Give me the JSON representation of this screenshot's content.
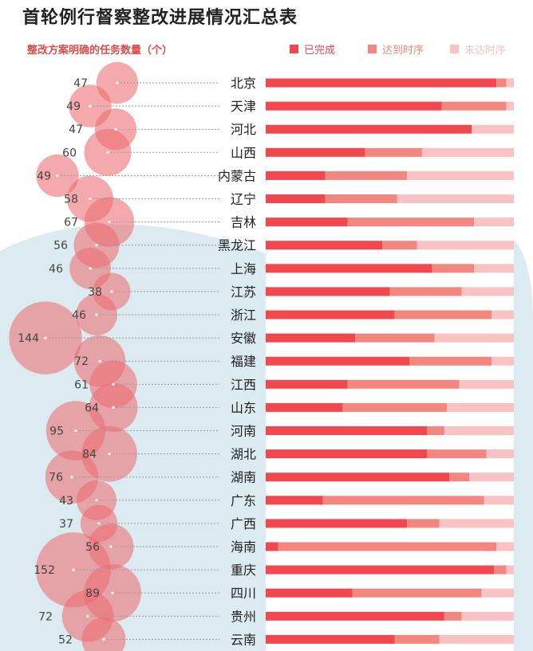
{
  "title": "首轮例行督察整改进展情况汇总表",
  "subtitle": "整改方案明确的任务数量（个）",
  "colors": {
    "completed": "#f2474f",
    "on_schedule": "#f3877f",
    "behind_schedule": "#f8c3c2",
    "bubble": "#ec6c72",
    "background_wave": "#dcebf1",
    "province_text": "#222222",
    "count_text": "#444444"
  },
  "legend": [
    {
      "name": "已完成",
      "color": "#f2474f"
    },
    {
      "name": "达到时序",
      "color": "#f3877f"
    },
    {
      "name": "未达时序",
      "color": "#f8c3c2"
    }
  ],
  "chart_data": {
    "type": "bar",
    "stacked": true,
    "orientation": "horizontal",
    "title": "首轮例行督察整改进展情况汇总表",
    "bubble_label": "整改方案明确的任务数量（个）",
    "categories": [
      "北京",
      "天津",
      "河北",
      "山西",
      "内蒙古",
      "辽宁",
      "吉林",
      "黑龙江",
      "上海",
      "江苏",
      "浙江",
      "安徽",
      "福建",
      "江西",
      "山东",
      "河南",
      "湖北",
      "湖南",
      "广东",
      "广西",
      "海南",
      "重庆",
      "四川",
      "贵州",
      "云南"
    ],
    "task_counts": [
      47,
      49,
      47,
      60,
      49,
      58,
      67,
      56,
      46,
      38,
      46,
      144,
      72,
      61,
      64,
      95,
      84,
      76,
      43,
      37,
      56,
      152,
      89,
      72,
      52
    ],
    "series": [
      {
        "name": "已完成",
        "values": [
          93,
          71,
          83,
          40,
          24,
          24,
          33,
          47,
          67,
          50,
          52,
          36,
          58,
          33,
          31,
          65,
          65,
          74,
          23,
          57,
          5,
          92,
          35,
          72,
          52
        ]
      },
      {
        "name": "达到时序",
        "values": [
          4,
          26,
          0,
          23,
          33,
          29,
          51,
          14,
          17,
          29,
          39,
          32,
          33,
          45,
          42,
          7,
          24,
          8,
          65,
          13,
          88,
          5,
          52,
          7,
          18
        ]
      },
      {
        "name": "未达时序",
        "values": [
          3,
          3,
          17,
          37,
          43,
          47,
          16,
          39,
          16,
          21,
          9,
          32,
          9,
          22,
          27,
          28,
          11,
          18,
          12,
          30,
          7,
          3,
          13,
          21,
          30
        ]
      }
    ],
    "xlim": [
      0,
      100
    ],
    "xlabel": "",
    "ylabel": "",
    "grid": false
  }
}
